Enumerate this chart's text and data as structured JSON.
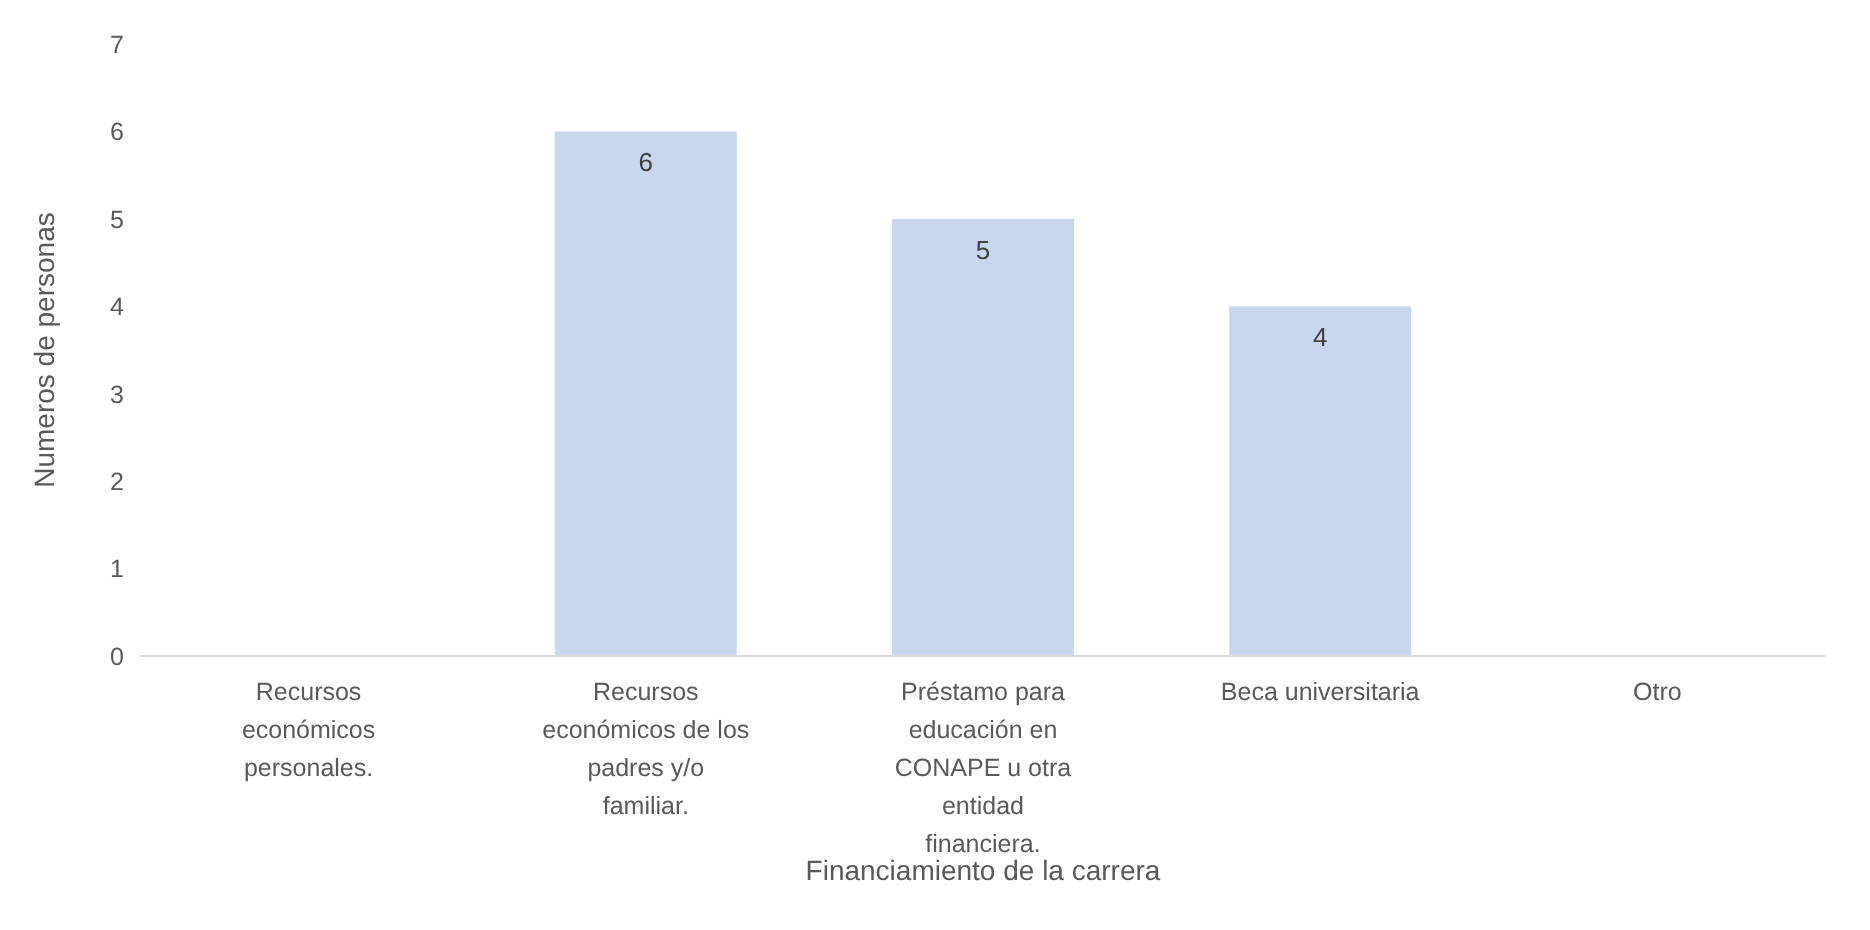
{
  "chart_data": {
    "type": "bar",
    "xlabel": "Financiamiento de la carrera",
    "ylabel": "Numeros de personas",
    "categories": [
      "Recursos económicos personales.",
      "Recursos económicos de los padres y/o familiar.",
      "Préstamo para educación en CONAPE u otra entidad financiera.",
      "Beca universitaria",
      "Otro"
    ],
    "values": [
      0,
      6,
      5,
      4,
      0
    ],
    "color": "#c9d7ee",
    "value_labels": [
      null,
      "6",
      "5",
      "4",
      null
    ],
    "ylim": [
      0,
      7
    ],
    "yticks": [
      0,
      1,
      2,
      3,
      4,
      5,
      6,
      7
    ],
    "grid": false
  }
}
